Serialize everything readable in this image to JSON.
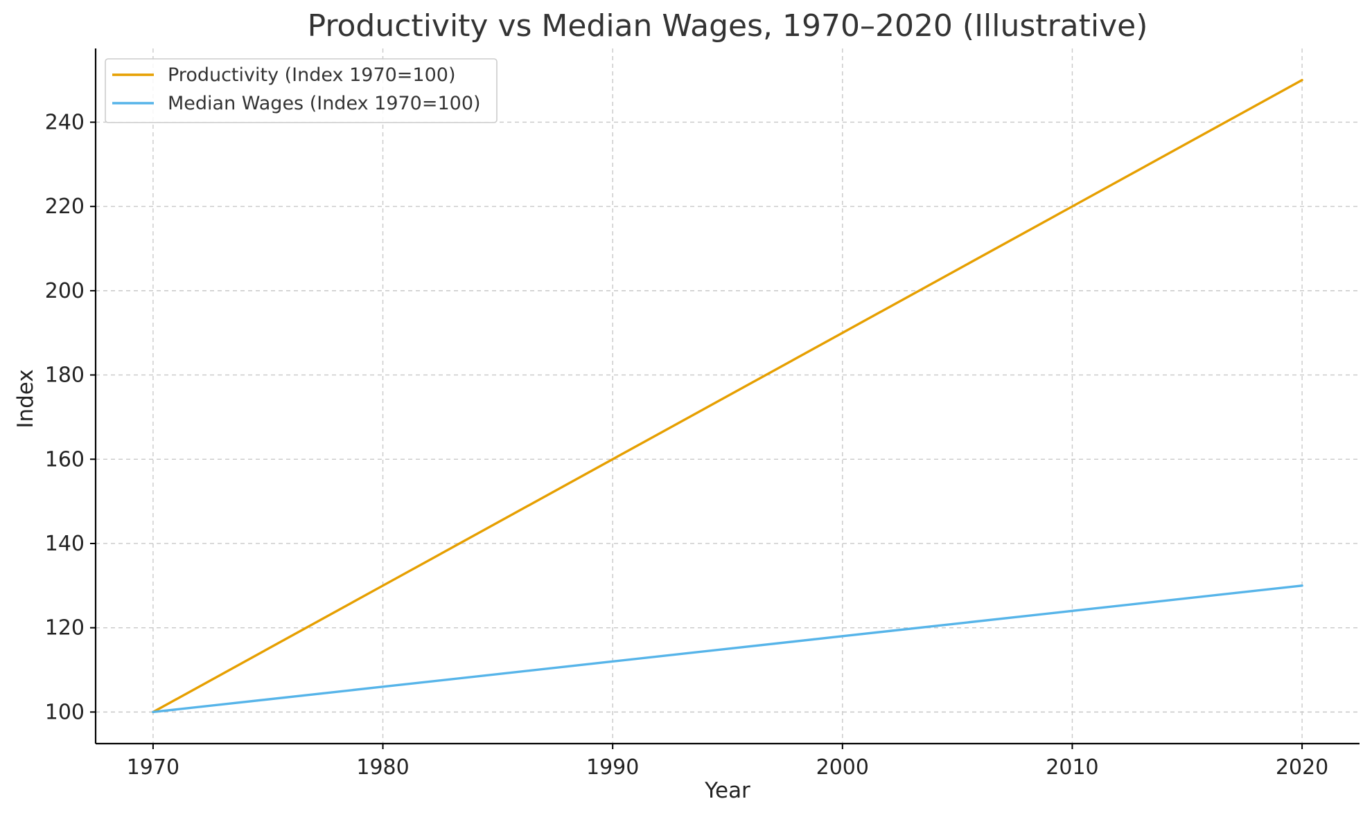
{
  "chart_data": {
    "type": "line",
    "title": "Productivity vs Median Wages, 1970–2020 (Illustrative)",
    "xlabel": "Year",
    "ylabel": "Index",
    "xlim": [
      1967.5,
      2022.5
    ],
    "ylim": [
      92.5,
      257.5
    ],
    "xticks": [
      1970,
      1980,
      1990,
      2000,
      2010,
      2020
    ],
    "yticks": [
      100,
      120,
      140,
      160,
      180,
      200,
      220,
      240
    ],
    "grid": true,
    "legend_position": "top-left",
    "x": [
      1970,
      1980,
      1990,
      2000,
      2010,
      2020
    ],
    "series": [
      {
        "name": "Productivity (Index 1970=100)",
        "color": "#E69F00",
        "values": [
          100,
          130,
          160,
          190,
          220,
          250
        ]
      },
      {
        "name": "Median Wages (Index 1970=100)",
        "color": "#56B4E9",
        "values": [
          100,
          106,
          112,
          118,
          124,
          130
        ]
      }
    ]
  }
}
